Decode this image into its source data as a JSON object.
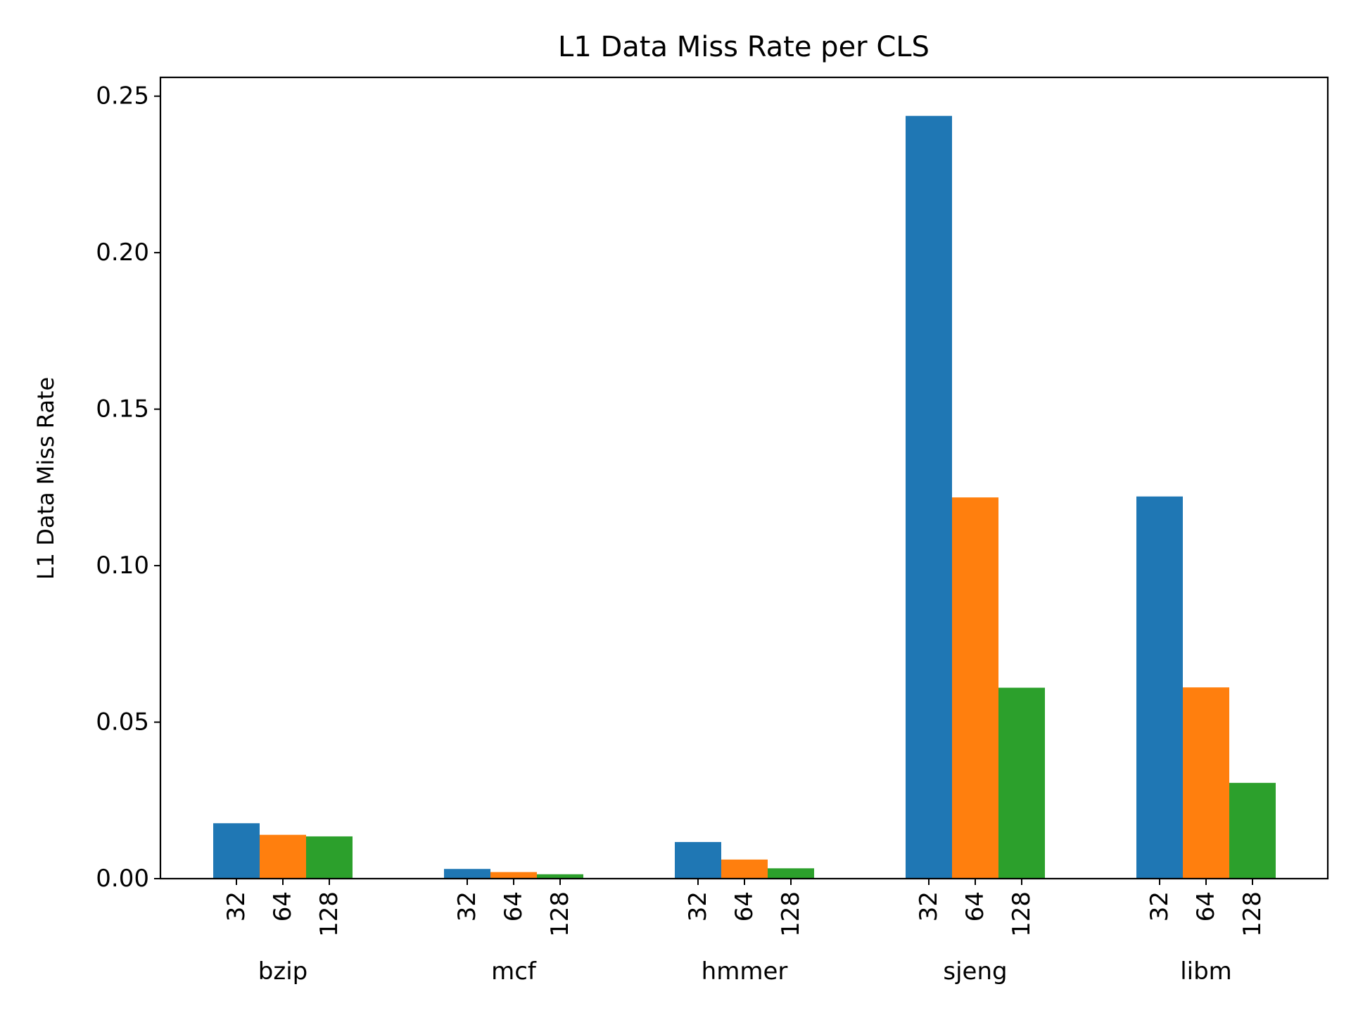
{
  "chart_data": {
    "type": "bar",
    "title": "L1 Data Miss Rate per CLS",
    "xlabel": "",
    "ylabel": "L1 Data Miss Rate",
    "ylim": [
      0,
      0.256
    ],
    "yticks": [
      "0.00",
      "0.05",
      "0.10",
      "0.15",
      "0.20",
      "0.25"
    ],
    "ytick_values": [
      0,
      0.05,
      0.1,
      0.15,
      0.2,
      0.25
    ],
    "categories": [
      "bzip",
      "mcf",
      "hmmer",
      "sjeng",
      "libm"
    ],
    "sub_labels": [
      "32",
      "64",
      "128"
    ],
    "series": [
      {
        "name": "32",
        "color": "#1f77b4",
        "values": [
          0.0177,
          0.0031,
          0.0117,
          0.2437,
          0.1221
        ]
      },
      {
        "name": "64",
        "color": "#ff7f0e",
        "values": [
          0.014,
          0.0021,
          0.0061,
          0.1218,
          0.0611
        ]
      },
      {
        "name": "128",
        "color": "#2ca02c",
        "values": [
          0.0135,
          0.0014,
          0.0033,
          0.061,
          0.0306
        ]
      }
    ],
    "grid": false,
    "legend": "none"
  }
}
